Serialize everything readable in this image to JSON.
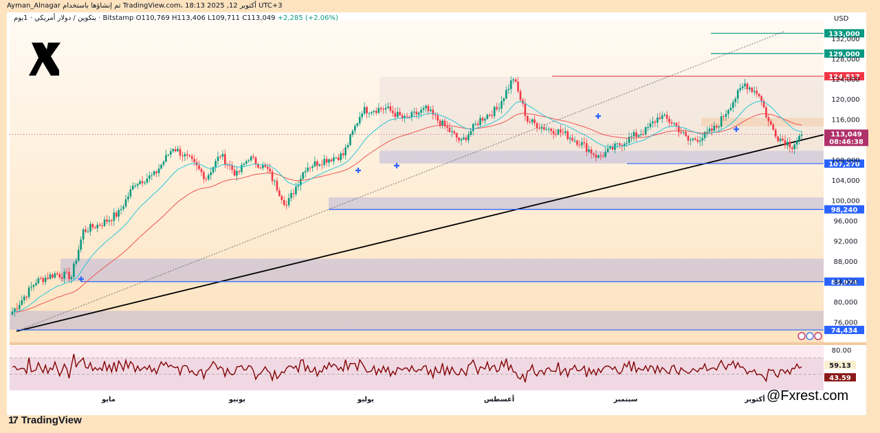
{
  "header": {
    "text": "Ayman_Alnagar تم إنشاؤها باستخدام TradingView.com، 18:13 2025 ,12 أكتوبر UTC+3"
  },
  "info": {
    "symbol": "بتكوين / دولار أمريكي · 1يوم · Bitstamp",
    "open": "O110,769",
    "high": "H113,406",
    "low": "L109,711",
    "close": "C113,049",
    "change": "+2,285 (+2.06%)"
  },
  "currency": "USD",
  "brand": {
    "footer": "TradingView",
    "watermark": "@Fxrest.com"
  },
  "icons": {
    "logo": "x-logo-icon",
    "tradingview": "tradingview-icon"
  },
  "colors": {
    "up": "#089981",
    "down": "#f23645",
    "ema_fast": "#26c6da",
    "ema_slow": "#ef5350",
    "rsi": "#800000",
    "blue_level": "#2962ff",
    "teal_level": "#089981",
    "red_level": "#f23645"
  },
  "chart_data": {
    "type": "candlestick",
    "title": "بتكوين / دولار أمريكي · 1يوم · Bitstamp",
    "ylim": [
      72000,
      135500
    ],
    "y_ticks": [
      "132,000",
      "128,000",
      "124,000",
      "120,000",
      "116,000",
      "112,000",
      "108,000",
      "104,000",
      "100,000",
      "96,000",
      "92,000",
      "88,000",
      "84,000",
      "80,000",
      "76,000"
    ],
    "x_months": [
      "مايو",
      "يونيو",
      "يوليو",
      "أغسطس",
      "سبتمبر",
      "أكتوبر"
    ],
    "levels": [
      {
        "label": "133,000",
        "value": 133000,
        "color": "teal"
      },
      {
        "label": "129,000",
        "value": 129000,
        "color": "teal"
      },
      {
        "label": "124,517",
        "value": 124517,
        "color": "red"
      },
      {
        "label": "107,270",
        "value": 107270,
        "color": "blue"
      },
      {
        "label": "98,240",
        "value": 98240,
        "color": "blue"
      },
      {
        "label": "83,974",
        "value": 83974,
        "color": "blue"
      },
      {
        "label": "74,434",
        "value": 74434,
        "color": "blue"
      }
    ],
    "current_price": {
      "label": "113,049",
      "countdown": "08:46:38"
    },
    "zones": [
      {
        "from": 107300,
        "to": 109800
      },
      {
        "from": 98300,
        "to": 100600
      },
      {
        "from": 84000,
        "to": 88500
      },
      {
        "from": 74500,
        "to": 78200
      },
      {
        "from": 114600,
        "to": 116300
      }
    ],
    "series": [],
    "rsi": {
      "ylim": [
        30,
        85
      ],
      "tick_label": "80.00",
      "levels": [
        70,
        50
      ],
      "last_values": [
        {
          "label": "59.13"
        },
        {
          "label": "43.59"
        }
      ]
    }
  }
}
